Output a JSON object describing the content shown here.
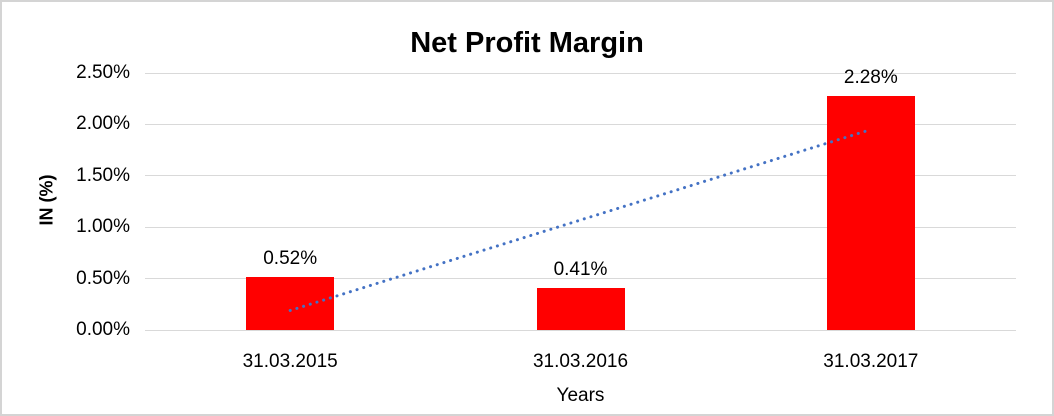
{
  "chart": {
    "title": "Net Profit Margin",
    "y_axis_title": "IN (%)",
    "x_axis_title": "Years"
  },
  "chart_data": {
    "type": "bar",
    "title": "Net Profit Margin",
    "xlabel": "Years",
    "ylabel": "IN (%)",
    "categories": [
      "31.03.2015",
      "31.03.2016",
      "31.03.2017"
    ],
    "values": [
      0.52,
      0.41,
      2.28
    ],
    "data_labels": [
      "0.52%",
      "0.41%",
      "2.28%"
    ],
    "ylim": [
      0,
      2.5
    ],
    "ytick_values": [
      0,
      0.5,
      1.0,
      1.5,
      2.0,
      2.5
    ],
    "ytick_labels": [
      "0.00%",
      "0.50%",
      "1.00%",
      "1.50%",
      "2.00%",
      "2.50%"
    ],
    "grid": true,
    "legend": "none",
    "bar_color": "#FF0000",
    "trendline": {
      "type": "linear",
      "style": "dotted",
      "color": "#4472C4",
      "x_start": 0,
      "x_end": 2,
      "y_start": 0.19,
      "y_end": 1.95
    },
    "colors": {
      "background": "#FFFFFF",
      "frame_border": "#D4D4D4",
      "gridline": "#D9D9D9",
      "text": "#000000"
    }
  }
}
